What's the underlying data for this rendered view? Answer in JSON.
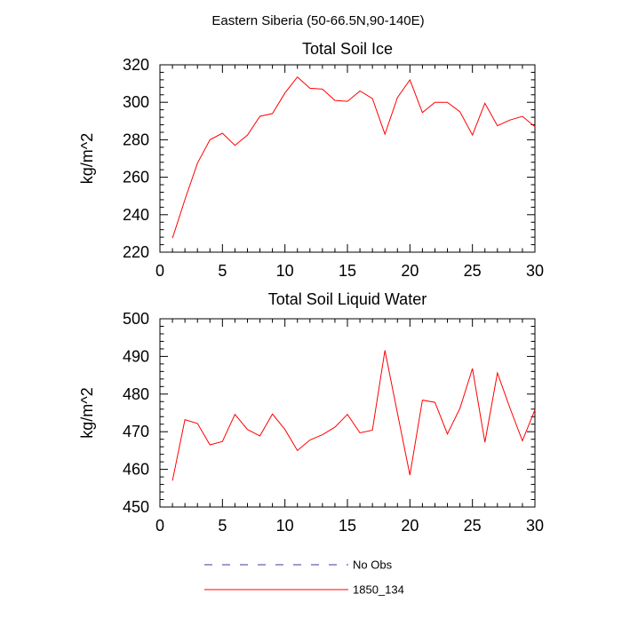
{
  "figure": {
    "suptitle": "Eastern Siberia (50-66.5N,90-140E)"
  },
  "legend": {
    "placement": "bottom-center",
    "entries": [
      {
        "label": "No Obs",
        "style": "dashed",
        "color": "#3a3aa6"
      },
      {
        "label": "1850_134",
        "style": "solid",
        "color": "#ff0000"
      }
    ]
  },
  "chart_data": [
    {
      "type": "line",
      "title": "Total Soil Ice",
      "xlabel": "",
      "ylabel": "kg/m^2",
      "xlim": [
        0,
        30
      ],
      "ylim": [
        220,
        320
      ],
      "xticks": [
        0,
        5,
        10,
        15,
        20,
        25,
        30
      ],
      "yticks": [
        220,
        240,
        260,
        280,
        300,
        320
      ],
      "x_minor_step": 1,
      "y_minor_step": 4,
      "grid": false,
      "x": [
        1,
        2,
        3,
        4,
        5,
        6,
        7,
        8,
        9,
        10,
        11,
        12,
        13,
        14,
        15,
        16,
        17,
        18,
        19,
        20,
        21,
        22,
        23,
        24,
        25,
        26,
        27,
        28,
        29,
        30
      ],
      "series": [
        {
          "name": "1850_134",
          "color": "#ff0000",
          "values": [
            227.5,
            248,
            267.5,
            280,
            283.5,
            277,
            282.5,
            292.5,
            294,
            305,
            313.5,
            307.5,
            307,
            301,
            300.5,
            306,
            302,
            283,
            302.5,
            312,
            294.5,
            300,
            300,
            295,
            282.5,
            299.5,
            287.5,
            290.5,
            292.5,
            287
          ]
        }
      ]
    },
    {
      "type": "line",
      "title": "Total Soil Liquid Water",
      "xlabel": "",
      "ylabel": "kg/m^2",
      "xlim": [
        0,
        30
      ],
      "ylim": [
        450,
        500
      ],
      "xticks": [
        0,
        5,
        10,
        15,
        20,
        25,
        30
      ],
      "yticks": [
        450,
        460,
        470,
        480,
        490,
        500
      ],
      "x_minor_step": 1,
      "y_minor_step": 2,
      "grid": false,
      "x": [
        1,
        2,
        3,
        4,
        5,
        6,
        7,
        8,
        9,
        10,
        11,
        12,
        13,
        14,
        15,
        16,
        17,
        18,
        19,
        20,
        21,
        22,
        23,
        24,
        25,
        26,
        27,
        28,
        29,
        30
      ],
      "series": [
        {
          "name": "1850_134",
          "color": "#ff0000",
          "values": [
            457,
            473.2,
            472.2,
            466.5,
            467.4,
            474.6,
            470.6,
            468.9,
            474.7,
            470.6,
            465,
            467.8,
            469.2,
            471.2,
            474.6,
            469.7,
            470.4,
            491.6,
            474.9,
            458.5,
            478.4,
            477.8,
            469.4,
            476.2,
            486.8,
            467.2,
            485.6,
            476.3,
            467.6,
            475.8
          ]
        }
      ]
    }
  ]
}
